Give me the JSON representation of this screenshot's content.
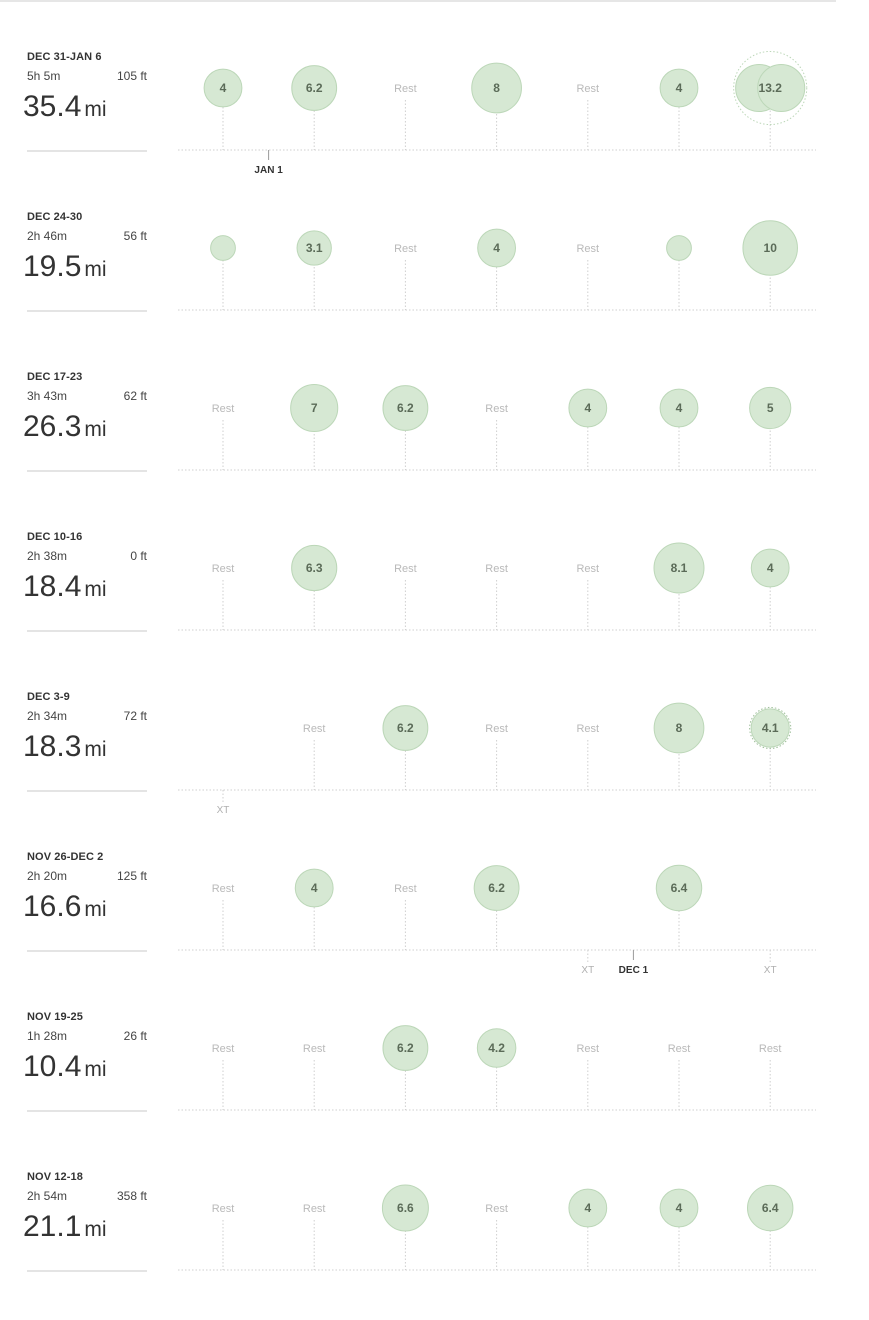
{
  "colors": {
    "bubble_fill": "#d6e8d3",
    "bubble_stroke": "#bcd7b8",
    "bubble_text": "#5b6b58",
    "rest_text": "#b9b9b9",
    "axis": "#cfcfcf"
  },
  "weeks": [
    {
      "label": "DEC 31-JAN 6",
      "time": "5h 5m",
      "elevation": "105 ft",
      "distance": "35.4",
      "unit": "mi",
      "days": [
        {
          "type": "run",
          "value": 4,
          "label": "4"
        },
        {
          "type": "run",
          "value": 6.2,
          "label": "6.2"
        },
        {
          "type": "rest",
          "label": "Rest"
        },
        {
          "type": "run",
          "value": 8,
          "label": "8"
        },
        {
          "type": "rest",
          "label": "Rest"
        },
        {
          "type": "run",
          "value": 4,
          "label": "4"
        },
        {
          "type": "run",
          "value": 13.2,
          "label": "13.2",
          "double": true,
          "dotted": true
        }
      ],
      "marker": {
        "label": "JAN 1",
        "between": [
          0,
          1
        ]
      }
    },
    {
      "label": "DEC 24-30",
      "time": "2h 46m",
      "elevation": "56 ft",
      "distance": "19.5",
      "unit": "mi",
      "days": [
        {
          "type": "run",
          "value": 1.2,
          "label": ""
        },
        {
          "type": "run",
          "value": 3.1,
          "label": "3.1"
        },
        {
          "type": "rest",
          "label": "Rest"
        },
        {
          "type": "run",
          "value": 4,
          "label": "4"
        },
        {
          "type": "rest",
          "label": "Rest"
        },
        {
          "type": "run",
          "value": 1.2,
          "label": ""
        },
        {
          "type": "run",
          "value": 10,
          "label": "10"
        }
      ]
    },
    {
      "label": "DEC 17-23",
      "time": "3h 43m",
      "elevation": "62 ft",
      "distance": "26.3",
      "unit": "mi",
      "days": [
        {
          "type": "rest",
          "label": "Rest"
        },
        {
          "type": "run",
          "value": 7,
          "label": "7"
        },
        {
          "type": "run",
          "value": 6.2,
          "label": "6.2"
        },
        {
          "type": "rest",
          "label": "Rest"
        },
        {
          "type": "run",
          "value": 4,
          "label": "4"
        },
        {
          "type": "run",
          "value": 4,
          "label": "4"
        },
        {
          "type": "run",
          "value": 5,
          "label": "5"
        }
      ]
    },
    {
      "label": "DEC 10-16",
      "time": "2h 38m",
      "elevation": "0 ft",
      "distance": "18.4",
      "unit": "mi",
      "days": [
        {
          "type": "rest",
          "label": "Rest"
        },
        {
          "type": "run",
          "value": 6.3,
          "label": "6.3"
        },
        {
          "type": "rest",
          "label": "Rest"
        },
        {
          "type": "rest",
          "label": "Rest"
        },
        {
          "type": "rest",
          "label": "Rest"
        },
        {
          "type": "run",
          "value": 8.1,
          "label": "8.1"
        },
        {
          "type": "run",
          "value": 4,
          "label": "4"
        }
      ]
    },
    {
      "label": "DEC 3-9",
      "time": "2h 34m",
      "elevation": "72 ft",
      "distance": "18.3",
      "unit": "mi",
      "days": [
        {
          "type": "xt",
          "label": "XT"
        },
        {
          "type": "rest",
          "label": "Rest"
        },
        {
          "type": "run",
          "value": 6.2,
          "label": "6.2"
        },
        {
          "type": "rest",
          "label": "Rest"
        },
        {
          "type": "rest",
          "label": "Rest"
        },
        {
          "type": "run",
          "value": 8,
          "label": "8"
        },
        {
          "type": "run",
          "value": 4.1,
          "label": "4.1",
          "dotted": true
        }
      ]
    },
    {
      "label": "NOV 26-DEC 2",
      "time": "2h 20m",
      "elevation": "125 ft",
      "distance": "16.6",
      "unit": "mi",
      "days": [
        {
          "type": "rest",
          "label": "Rest"
        },
        {
          "type": "run",
          "value": 4,
          "label": "4"
        },
        {
          "type": "rest",
          "label": "Rest"
        },
        {
          "type": "run",
          "value": 6.2,
          "label": "6.2"
        },
        {
          "type": "xt",
          "label": "XT"
        },
        {
          "type": "run",
          "value": 6.4,
          "label": "6.4"
        },
        {
          "type": "xt",
          "label": "XT"
        }
      ],
      "marker": {
        "label": "DEC 1",
        "between": [
          4,
          5
        ]
      }
    },
    {
      "label": "NOV 19-25",
      "time": "1h 28m",
      "elevation": "26 ft",
      "distance": "10.4",
      "unit": "mi",
      "days": [
        {
          "type": "rest",
          "label": "Rest"
        },
        {
          "type": "rest",
          "label": "Rest"
        },
        {
          "type": "run",
          "value": 6.2,
          "label": "6.2"
        },
        {
          "type": "run",
          "value": 4.2,
          "label": "4.2"
        },
        {
          "type": "rest",
          "label": "Rest"
        },
        {
          "type": "rest",
          "label": "Rest"
        },
        {
          "type": "rest",
          "label": "Rest"
        }
      ]
    },
    {
      "label": "NOV 12-18",
      "time": "2h 54m",
      "elevation": "358 ft",
      "distance": "21.1",
      "unit": "mi",
      "days": [
        {
          "type": "rest",
          "label": "Rest"
        },
        {
          "type": "rest",
          "label": "Rest"
        },
        {
          "type": "run",
          "value": 6.6,
          "label": "6.6"
        },
        {
          "type": "rest",
          "label": "Rest"
        },
        {
          "type": "run",
          "value": 4,
          "label": "4"
        },
        {
          "type": "run",
          "value": 4,
          "label": "4"
        },
        {
          "type": "run",
          "value": 6.4,
          "label": "6.4"
        }
      ]
    }
  ]
}
